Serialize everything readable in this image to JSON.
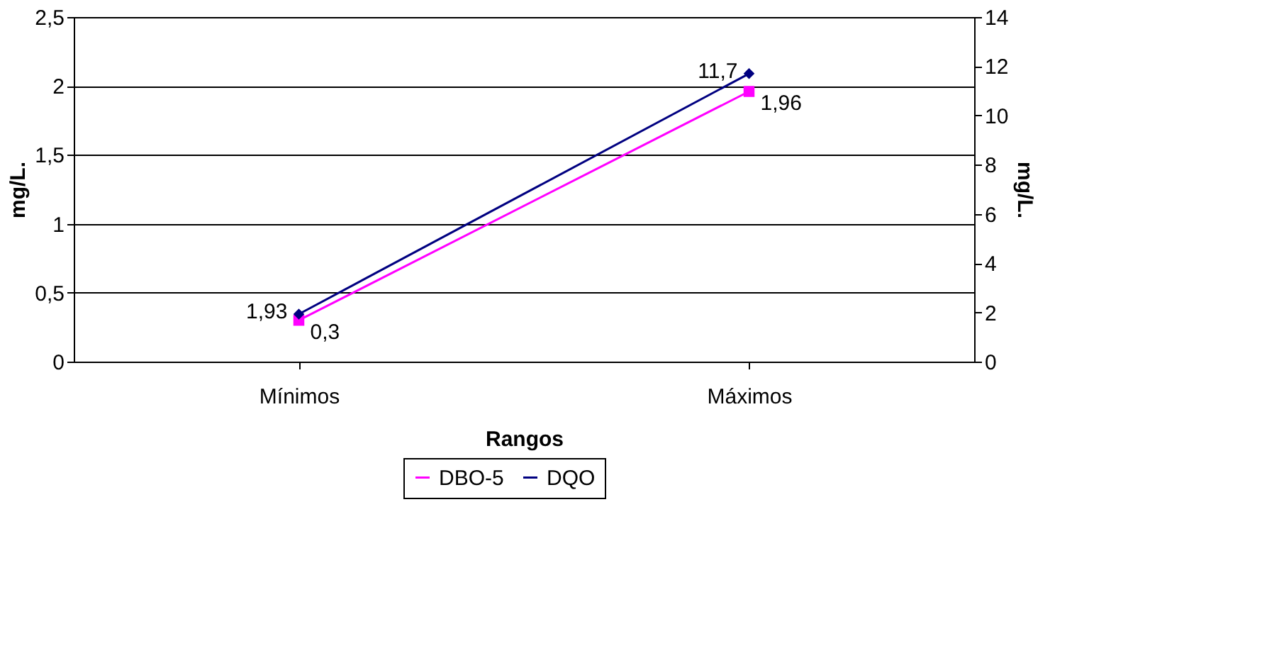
{
  "chart_data": {
    "type": "line",
    "xlabel": "Rangos",
    "ylabel": "mg/L.",
    "y2label": "mg/L.",
    "categories": [
      "Mínimos",
      "Máximos"
    ],
    "series": [
      {
        "name": "DBO-5",
        "color": "#ff00ff",
        "values": [
          0.3,
          1.96
        ],
        "value_labels": [
          "0,3",
          "1,96"
        ],
        "marker": "square"
      },
      {
        "name": "DQO",
        "color": "#000080",
        "values": [
          1.93,
          11.7
        ],
        "value_labels": [
          "1,93",
          "11,7"
        ],
        "marker": "diamond",
        "axis": "y2"
      }
    ],
    "ylim": [
      0,
      2.5
    ],
    "yticks": [
      0,
      {
        "value": 0.5,
        "label": "0,5"
      },
      1,
      {
        "value": 1.5,
        "label": "1,5"
      },
      2,
      {
        "value": 2.5,
        "label": "2,5"
      }
    ],
    "y2lim": [
      0,
      14
    ],
    "y2ticks": [
      0,
      2,
      4,
      6,
      8,
      10,
      12,
      14
    ],
    "grid": "y",
    "legend": "bottom",
    "line_style": "solid"
  }
}
